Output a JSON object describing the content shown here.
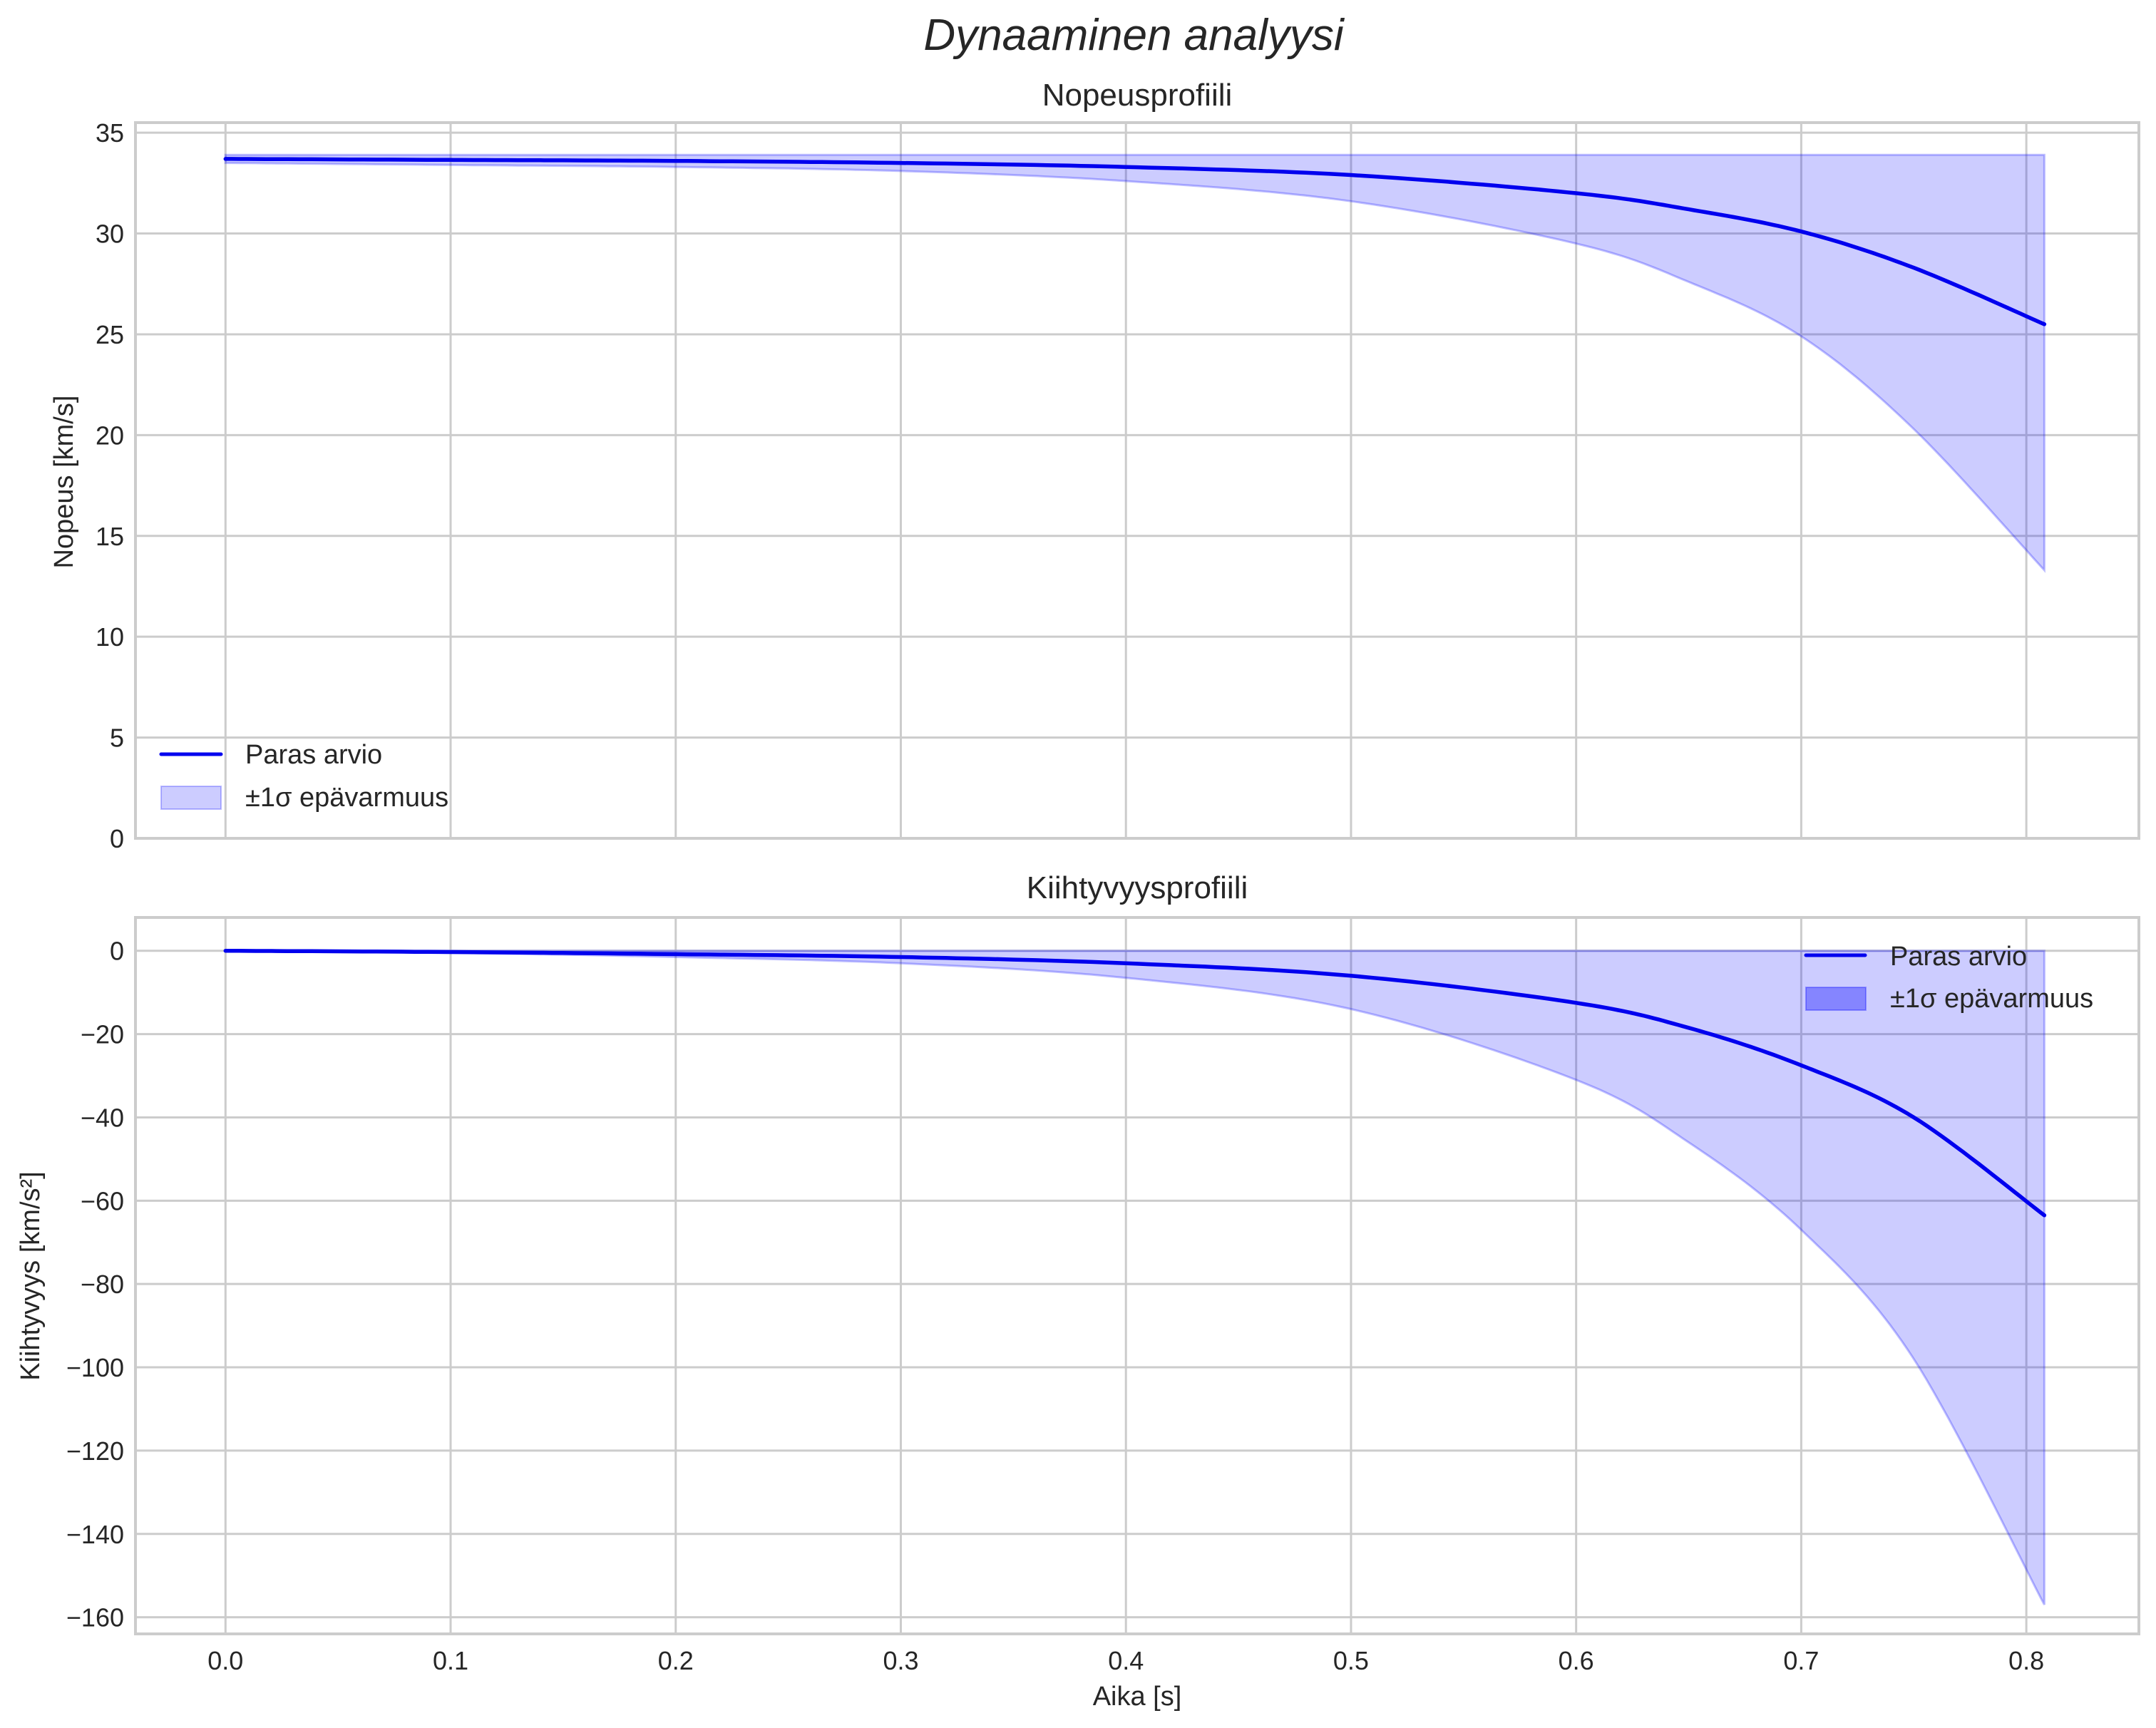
{
  "figure": {
    "suptitle": "Dynaaminen analyysi",
    "xlabel": "Aika [s]"
  },
  "colors": {
    "line": "#0000ee",
    "band_fill": "#0000ff",
    "band_alpha": 0.2,
    "grid": "#cccccc",
    "text": "#262626"
  },
  "chart_data": [
    {
      "type": "line",
      "title": "Nopeusprofiili",
      "xlabel": "",
      "ylabel": "Nopeus [km/s]",
      "xlim": [
        -0.04,
        0.85
      ],
      "ylim": [
        0,
        35.5
      ],
      "grid": true,
      "legend_position": "lower left",
      "x_ticks": [
        "0.0",
        "0.1",
        "0.2",
        "0.3",
        "0.4",
        "0.5",
        "0.6",
        "0.7",
        "0.8"
      ],
      "y_ticks": [
        "0",
        "5",
        "10",
        "15",
        "20",
        "25",
        "30",
        "35"
      ],
      "x": [
        0.0,
        0.1,
        0.2,
        0.3,
        0.4,
        0.5,
        0.6,
        0.65,
        0.7,
        0.75,
        0.808
      ],
      "series": [
        {
          "name": "Paras arvio",
          "kind": "line",
          "values": [
            33.7,
            33.65,
            33.6,
            33.5,
            33.3,
            32.9,
            32.0,
            31.2,
            30.1,
            28.3,
            25.5
          ]
        },
        {
          "name": "±1σ epävarmuus",
          "kind": "band",
          "upper": [
            33.9,
            33.9,
            33.9,
            33.9,
            33.9,
            33.9,
            33.9,
            33.9,
            33.9,
            33.9,
            33.9
          ],
          "lower": [
            33.5,
            33.4,
            33.3,
            33.1,
            32.6,
            31.6,
            29.5,
            27.6,
            24.9,
            20.3,
            13.3
          ]
        }
      ],
      "legend": [
        "Paras arvio",
        "±1σ epävarmuus"
      ]
    },
    {
      "type": "line",
      "title": "Kiihtyvyysprofiili",
      "xlabel": "Aika [s]",
      "ylabel": "Kiihtyvyys [km/s²]",
      "xlim": [
        -0.04,
        0.85
      ],
      "ylim": [
        -164,
        8
      ],
      "grid": true,
      "legend_position": "upper right",
      "x_ticks": [
        "0.0",
        "0.1",
        "0.2",
        "0.3",
        "0.4",
        "0.5",
        "0.6",
        "0.7",
        "0.8"
      ],
      "y_ticks": [
        "0",
        "−20",
        "−40",
        "−60",
        "−80",
        "−100",
        "−120",
        "−140",
        "−160"
      ],
      "x": [
        0.0,
        0.1,
        0.2,
        0.3,
        0.4,
        0.5,
        0.6,
        0.65,
        0.7,
        0.75,
        0.808
      ],
      "series": [
        {
          "name": "Paras arvio",
          "kind": "line",
          "values": [
            0,
            -0.3,
            -0.8,
            -1.5,
            -3.0,
            -6.0,
            -12.5,
            -18.5,
            -27.5,
            -40.0,
            -63.5
          ]
        },
        {
          "name": "±1σ epävarmuus",
          "kind": "band",
          "upper": [
            0,
            0,
            0,
            0,
            0,
            0,
            0,
            0,
            0,
            0,
            0
          ],
          "lower": [
            0,
            -0.5,
            -1.5,
            -3.0,
            -6.5,
            -14.0,
            -31.0,
            -46.0,
            -67.0,
            -98.0,
            -157.0
          ]
        }
      ],
      "legend": [
        "Paras arvio",
        "±1σ epävarmuus"
      ]
    }
  ]
}
